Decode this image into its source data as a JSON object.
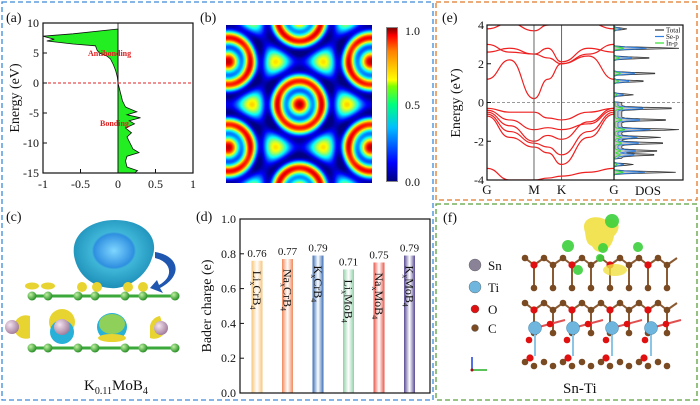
{
  "panels": {
    "a": {
      "label": "(a)"
    },
    "b": {
      "label": "(b)"
    },
    "c": {
      "label": "(c)",
      "caption": {
        "base": "K",
        "sub": "0.11",
        "rest": "MoB",
        "sub2": "4"
      }
    },
    "d": {
      "label": "(d)"
    },
    "e": {
      "label": "(e)"
    },
    "f": {
      "label": "(f)",
      "caption": "Sn-Ti",
      "legend": [
        {
          "name": "Sn",
          "color": "#8a8296"
        },
        {
          "name": "Ti",
          "color": "#6fb6de"
        },
        {
          "name": "O",
          "color": "#e01010"
        },
        {
          "name": "C",
          "color": "#7a4a22"
        }
      ]
    }
  },
  "colors": {
    "panel_a_b_c_d_border": "#3c8ad8",
    "panel_e_border": "#e07a2a",
    "panel_f_border": "#5aa040"
  },
  "chart_data": [
    {
      "id": "a",
      "type": "area",
      "ylabel": "Energy (eV)",
      "xlabel": "",
      "xlim": [
        -1,
        1
      ],
      "ylim": [
        -15,
        10
      ],
      "xticks": [
        "-1",
        "-0.5",
        "0",
        "0.5",
        "1"
      ],
      "yticks": [
        "10",
        "5",
        "0",
        "-5",
        "-10",
        "-15"
      ],
      "fermi_level": 0,
      "annotations": [
        "Antibonding",
        "Bonding"
      ],
      "energy": [
        9,
        8.2,
        7.8,
        7.3,
        7,
        6.5,
        6.2,
        5.5,
        5,
        4.5,
        4,
        3,
        2,
        1,
        0,
        -1,
        -2,
        -3,
        -4,
        -4.8,
        -5.3,
        -5.8,
        -6.3,
        -6.8,
        -7.5,
        -8.3,
        -9,
        -10,
        -11,
        -11.6,
        -12.2,
        -13,
        -14,
        -14.6,
        -15
      ],
      "values": [
        0,
        -0.6,
        -1,
        -0.85,
        -0.95,
        -0.6,
        -0.3,
        -0.28,
        -0.25,
        -0.15,
        -0.1,
        -0.06,
        -0.03,
        -0.01,
        0,
        0.02,
        0.04,
        0.06,
        0.1,
        0.25,
        0.12,
        0.3,
        0.15,
        0.22,
        0.1,
        0.18,
        0.12,
        0.16,
        0.2,
        0.28,
        0.12,
        0.1,
        0.12,
        0.26,
        0.22
      ]
    },
    {
      "id": "b",
      "type": "heatmap",
      "colorbar_ticks": [
        "1.0",
        "0.5",
        "0.0"
      ],
      "range": [
        0,
        1
      ]
    },
    {
      "id": "d",
      "type": "bar",
      "ylabel": "Bader charge (e)",
      "ylim": [
        0,
        1
      ],
      "yticks": [
        "0.0",
        "0.2",
        "0.4",
        "0.6",
        "0.8",
        "1.0"
      ],
      "categories": [
        {
          "parts": [
            "Li",
            "x",
            "CrB",
            "4"
          ],
          "value": 0.76,
          "label": "0.76",
          "color": "#f7c57a"
        },
        {
          "parts": [
            "Na",
            "x",
            "CrB",
            "4"
          ],
          "value": 0.77,
          "label": "0.77",
          "color": "#f08a5d"
        },
        {
          "parts": [
            "K",
            "x",
            "CrB",
            "4"
          ],
          "value": 0.79,
          "label": "0.79",
          "color": "#3d6fb6"
        },
        {
          "parts": [
            "Li",
            "x",
            "MoB",
            "4"
          ],
          "value": 0.71,
          "label": "0.71",
          "color": "#8fd0a8"
        },
        {
          "parts": [
            "Na",
            "x",
            "MoB",
            "4"
          ],
          "value": 0.75,
          "label": "0.75",
          "color": "#e8574a"
        },
        {
          "parts": [
            "K",
            "x",
            "MoB",
            "4"
          ],
          "value": 0.79,
          "label": "0.79",
          "color": "#5a4b94"
        }
      ]
    },
    {
      "id": "e",
      "type": "line",
      "ylabel": "Energy (eV)",
      "ylim": [
        -4,
        4
      ],
      "yticks": [
        "4",
        "2",
        "0",
        "-2",
        "-4"
      ],
      "kpoints": [
        "G",
        "M",
        "K",
        "G"
      ],
      "dos_label": "DOS",
      "legend": [
        {
          "name": "Total",
          "color": "#333333"
        },
        {
          "name": "Se-p",
          "color": "#2f7fe0"
        },
        {
          "name": "In-p",
          "color": "#30e030"
        }
      ],
      "k_samples": [
        0,
        0.18,
        0.37,
        0.48,
        0.587,
        0.8,
        1
      ],
      "bands": [
        [
          3.8,
          4.1,
          3.7,
          4.0,
          4.2,
          4.1,
          3.8
        ],
        [
          3.0,
          2.6,
          2.5,
          2.3,
          2.0,
          2.5,
          3.0
        ],
        [
          2.6,
          2.8,
          2.5,
          2.8,
          2.1,
          2.8,
          2.6
        ],
        [
          1.2,
          2.2,
          0.2,
          1.2,
          2.0,
          2.4,
          1.2
        ],
        [
          -0.3,
          -0.5,
          -0.5,
          -0.8,
          -0.9,
          -0.5,
          -0.3
        ],
        [
          -0.4,
          -0.9,
          -1.4,
          -1.3,
          -1.4,
          -1.1,
          -0.4
        ],
        [
          -0.5,
          -1.2,
          -2.0,
          -1.7,
          -1.9,
          -1.0,
          -0.3
        ],
        [
          -0.6,
          -1.5,
          -2.1,
          -2.3,
          -2.7,
          -1.5,
          -0.5
        ],
        [
          -0.7,
          -1.8,
          -2.3,
          -2.6,
          -3.2,
          -1.8,
          -0.6
        ],
        [
          -3.4,
          -4.0,
          -4.0,
          -3.9,
          -3.8,
          -3.6,
          -3.4
        ]
      ],
      "dos_peaks": [
        [
          3.8,
          0.2
        ],
        [
          2.8,
          1.0
        ],
        [
          2.3,
          0.6
        ],
        [
          1.5,
          0.7
        ],
        [
          1.1,
          0.5
        ],
        [
          0.4,
          0.3
        ],
        [
          -0.3,
          0.85
        ],
        [
          -0.9,
          0.75
        ],
        [
          -1.4,
          1.0
        ],
        [
          -1.8,
          0.6
        ],
        [
          -2.1,
          0.7
        ],
        [
          -2.5,
          0.6
        ],
        [
          -2.7,
          0.55
        ],
        [
          -3.2,
          0.3
        ],
        [
          -3.6,
          0.95
        ]
      ]
    }
  ]
}
